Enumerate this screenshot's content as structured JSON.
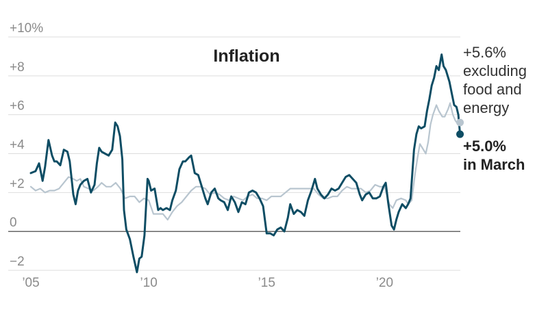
{
  "chart_data": {
    "type": "line",
    "title": "Inflation",
    "ylim": [
      -2,
      10
    ],
    "xlim": [
      2005,
      2023.3
    ],
    "grid": "horizontal",
    "colors": {
      "headline": "#0e4d64",
      "core": "#b8c5cf",
      "zero": "#333333",
      "grid": "#dddddd"
    },
    "y_ticks": [
      {
        "value": 10,
        "label": "+10%"
      },
      {
        "value": 8,
        "label": "+8"
      },
      {
        "value": 6,
        "label": "+6"
      },
      {
        "value": 4,
        "label": "+4"
      },
      {
        "value": 2,
        "label": "+2"
      },
      {
        "value": 0,
        "label": "0"
      },
      {
        "value": -2,
        "label": "−2"
      }
    ],
    "x_ticks": [
      {
        "value": 2005,
        "label": "’05"
      },
      {
        "value": 2010,
        "label": "’10"
      },
      {
        "value": 2015,
        "label": "’15"
      },
      {
        "value": 2020,
        "label": "’20"
      }
    ],
    "series": [
      {
        "key": "headline",
        "points": [
          [
            2005.0,
            3.0
          ],
          [
            2005.2,
            3.1
          ],
          [
            2005.35,
            3.5
          ],
          [
            2005.5,
            2.6
          ],
          [
            2005.6,
            3.3
          ],
          [
            2005.75,
            4.7
          ],
          [
            2005.9,
            3.9
          ],
          [
            2006.0,
            3.6
          ],
          [
            2006.1,
            3.6
          ],
          [
            2006.25,
            3.4
          ],
          [
            2006.4,
            4.2
          ],
          [
            2006.55,
            4.1
          ],
          [
            2006.65,
            3.6
          ],
          [
            2006.8,
            1.9
          ],
          [
            2006.9,
            1.4
          ],
          [
            2007.0,
            2.1
          ],
          [
            2007.1,
            2.4
          ],
          [
            2007.25,
            2.6
          ],
          [
            2007.4,
            2.7
          ],
          [
            2007.55,
            2.0
          ],
          [
            2007.7,
            2.4
          ],
          [
            2007.8,
            3.5
          ],
          [
            2007.9,
            4.3
          ],
          [
            2008.0,
            4.1
          ],
          [
            2008.15,
            4.0
          ],
          [
            2008.3,
            3.9
          ],
          [
            2008.45,
            4.2
          ],
          [
            2008.58,
            5.6
          ],
          [
            2008.68,
            5.4
          ],
          [
            2008.78,
            4.9
          ],
          [
            2008.88,
            3.7
          ],
          [
            2008.95,
            1.1
          ],
          [
            2009.05,
            0.1
          ],
          [
            2009.2,
            -0.4
          ],
          [
            2009.35,
            -1.3
          ],
          [
            2009.5,
            -2.1
          ],
          [
            2009.6,
            -1.4
          ],
          [
            2009.7,
            -1.3
          ],
          [
            2009.82,
            -0.2
          ],
          [
            2009.95,
            2.7
          ],
          [
            2010.0,
            2.6
          ],
          [
            2010.1,
            2.1
          ],
          [
            2010.25,
            2.2
          ],
          [
            2010.4,
            1.1
          ],
          [
            2010.5,
            1.2
          ],
          [
            2010.6,
            1.1
          ],
          [
            2010.75,
            1.2
          ],
          [
            2010.9,
            1.1
          ],
          [
            2011.0,
            1.6
          ],
          [
            2011.15,
            2.1
          ],
          [
            2011.3,
            3.2
          ],
          [
            2011.45,
            3.6
          ],
          [
            2011.55,
            3.6
          ],
          [
            2011.7,
            3.8
          ],
          [
            2011.8,
            3.9
          ],
          [
            2011.95,
            3.0
          ],
          [
            2012.1,
            2.9
          ],
          [
            2012.25,
            2.3
          ],
          [
            2012.4,
            1.7
          ],
          [
            2012.5,
            1.4
          ],
          [
            2012.65,
            2.0
          ],
          [
            2012.8,
            2.2
          ],
          [
            2012.95,
            1.7
          ],
          [
            2013.05,
            1.6
          ],
          [
            2013.2,
            1.5
          ],
          [
            2013.35,
            1.1
          ],
          [
            2013.5,
            1.8
          ],
          [
            2013.65,
            1.5
          ],
          [
            2013.8,
            1.0
          ],
          [
            2013.95,
            1.5
          ],
          [
            2014.1,
            1.4
          ],
          [
            2014.25,
            2.0
          ],
          [
            2014.4,
            2.1
          ],
          [
            2014.55,
            2.0
          ],
          [
            2014.7,
            1.7
          ],
          [
            2014.85,
            1.3
          ],
          [
            2015.0,
            -0.1
          ],
          [
            2015.15,
            -0.1
          ],
          [
            2015.3,
            -0.2
          ],
          [
            2015.45,
            0.1
          ],
          [
            2015.6,
            0.2
          ],
          [
            2015.75,
            0.0
          ],
          [
            2015.9,
            0.7
          ],
          [
            2016.0,
            1.4
          ],
          [
            2016.15,
            0.9
          ],
          [
            2016.3,
            1.1
          ],
          [
            2016.45,
            1.0
          ],
          [
            2016.6,
            0.8
          ],
          [
            2016.75,
            1.6
          ],
          [
            2016.9,
            2.1
          ],
          [
            2017.05,
            2.7
          ],
          [
            2017.15,
            2.2
          ],
          [
            2017.3,
            1.9
          ],
          [
            2017.45,
            1.7
          ],
          [
            2017.6,
            1.9
          ],
          [
            2017.75,
            2.2
          ],
          [
            2017.9,
            2.1
          ],
          [
            2018.05,
            2.2
          ],
          [
            2018.2,
            2.5
          ],
          [
            2018.35,
            2.8
          ],
          [
            2018.5,
            2.9
          ],
          [
            2018.65,
            2.7
          ],
          [
            2018.8,
            2.5
          ],
          [
            2018.95,
            1.9
          ],
          [
            2019.05,
            1.6
          ],
          [
            2019.2,
            1.9
          ],
          [
            2019.35,
            2.0
          ],
          [
            2019.5,
            1.7
          ],
          [
            2019.65,
            1.7
          ],
          [
            2019.8,
            1.8
          ],
          [
            2019.95,
            2.3
          ],
          [
            2020.05,
            2.5
          ],
          [
            2020.15,
            1.5
          ],
          [
            2020.3,
            0.3
          ],
          [
            2020.4,
            0.1
          ],
          [
            2020.5,
            0.6
          ],
          [
            2020.6,
            1.0
          ],
          [
            2020.75,
            1.4
          ],
          [
            2020.9,
            1.2
          ],
          [
            2021.0,
            1.4
          ],
          [
            2021.1,
            1.7
          ],
          [
            2021.25,
            4.2
          ],
          [
            2021.35,
            5.0
          ],
          [
            2021.45,
            5.4
          ],
          [
            2021.55,
            5.3
          ],
          [
            2021.7,
            5.4
          ],
          [
            2021.8,
            6.2
          ],
          [
            2021.9,
            6.8
          ],
          [
            2022.0,
            7.5
          ],
          [
            2022.1,
            7.9
          ],
          [
            2022.2,
            8.5
          ],
          [
            2022.3,
            8.3
          ],
          [
            2022.42,
            9.1
          ],
          [
            2022.5,
            8.5
          ],
          [
            2022.6,
            8.3
          ],
          [
            2022.75,
            7.7
          ],
          [
            2022.85,
            7.1
          ],
          [
            2022.95,
            6.5
          ],
          [
            2023.05,
            6.4
          ],
          [
            2023.13,
            6.0
          ],
          [
            2023.2,
            5.0
          ]
        ]
      },
      {
        "key": "core",
        "points": [
          [
            2005.0,
            2.3
          ],
          [
            2005.2,
            2.1
          ],
          [
            2005.4,
            2.2
          ],
          [
            2005.6,
            2.0
          ],
          [
            2005.8,
            2.1
          ],
          [
            2006.0,
            2.1
          ],
          [
            2006.2,
            2.2
          ],
          [
            2006.4,
            2.5
          ],
          [
            2006.6,
            2.8
          ],
          [
            2006.8,
            2.7
          ],
          [
            2006.95,
            2.6
          ],
          [
            2007.1,
            2.7
          ],
          [
            2007.25,
            2.3
          ],
          [
            2007.45,
            2.2
          ],
          [
            2007.65,
            2.1
          ],
          [
            2007.85,
            2.3
          ],
          [
            2008.0,
            2.5
          ],
          [
            2008.2,
            2.3
          ],
          [
            2008.4,
            2.3
          ],
          [
            2008.6,
            2.5
          ],
          [
            2008.8,
            2.2
          ],
          [
            2009.0,
            1.7
          ],
          [
            2009.2,
            1.8
          ],
          [
            2009.4,
            1.8
          ],
          [
            2009.6,
            1.5
          ],
          [
            2009.8,
            1.7
          ],
          [
            2010.0,
            1.6
          ],
          [
            2010.2,
            0.9
          ],
          [
            2010.4,
            0.9
          ],
          [
            2010.6,
            0.9
          ],
          [
            2010.8,
            0.6
          ],
          [
            2011.0,
            1.0
          ],
          [
            2011.2,
            1.3
          ],
          [
            2011.4,
            1.5
          ],
          [
            2011.6,
            1.8
          ],
          [
            2011.8,
            2.1
          ],
          [
            2012.0,
            2.3
          ],
          [
            2012.2,
            2.3
          ],
          [
            2012.4,
            2.2
          ],
          [
            2012.6,
            1.9
          ],
          [
            2012.8,
            2.0
          ],
          [
            2013.0,
            1.9
          ],
          [
            2013.2,
            1.7
          ],
          [
            2013.4,
            1.6
          ],
          [
            2013.6,
            1.8
          ],
          [
            2013.8,
            1.7
          ],
          [
            2014.0,
            1.6
          ],
          [
            2014.2,
            1.8
          ],
          [
            2014.4,
            1.9
          ],
          [
            2014.6,
            1.7
          ],
          [
            2014.8,
            1.7
          ],
          [
            2015.0,
            1.6
          ],
          [
            2015.2,
            1.8
          ],
          [
            2015.4,
            1.8
          ],
          [
            2015.6,
            1.8
          ],
          [
            2015.8,
            2.0
          ],
          [
            2016.0,
            2.2
          ],
          [
            2016.2,
            2.2
          ],
          [
            2016.4,
            2.2
          ],
          [
            2016.6,
            2.2
          ],
          [
            2016.8,
            2.2
          ],
          [
            2017.0,
            2.2
          ],
          [
            2017.2,
            1.9
          ],
          [
            2017.4,
            1.7
          ],
          [
            2017.6,
            1.7
          ],
          [
            2017.8,
            1.8
          ],
          [
            2018.0,
            1.8
          ],
          [
            2018.2,
            2.1
          ],
          [
            2018.4,
            2.3
          ],
          [
            2018.6,
            2.2
          ],
          [
            2018.8,
            2.2
          ],
          [
            2019.0,
            2.2
          ],
          [
            2019.2,
            2.0
          ],
          [
            2019.4,
            2.1
          ],
          [
            2019.6,
            2.4
          ],
          [
            2019.8,
            2.3
          ],
          [
            2020.0,
            2.3
          ],
          [
            2020.2,
            1.4
          ],
          [
            2020.35,
            1.2
          ],
          [
            2020.5,
            1.6
          ],
          [
            2020.7,
            1.7
          ],
          [
            2020.9,
            1.6
          ],
          [
            2021.0,
            1.4
          ],
          [
            2021.15,
            1.6
          ],
          [
            2021.3,
            3.0
          ],
          [
            2021.4,
            3.8
          ],
          [
            2021.5,
            4.5
          ],
          [
            2021.6,
            4.3
          ],
          [
            2021.75,
            4.0
          ],
          [
            2021.85,
            4.6
          ],
          [
            2021.95,
            5.5
          ],
          [
            2022.05,
            6.0
          ],
          [
            2022.2,
            6.5
          ],
          [
            2022.3,
            6.2
          ],
          [
            2022.45,
            5.9
          ],
          [
            2022.55,
            5.9
          ],
          [
            2022.7,
            6.3
          ],
          [
            2022.78,
            6.6
          ],
          [
            2022.9,
            6.0
          ],
          [
            2023.0,
            5.7
          ],
          [
            2023.13,
            5.5
          ],
          [
            2023.2,
            5.6
          ]
        ]
      }
    ],
    "annotations": {
      "core": [
        "+5.6%",
        "excluding",
        "food and",
        "energy"
      ],
      "headline": [
        "+5.0%",
        "in March"
      ]
    }
  }
}
